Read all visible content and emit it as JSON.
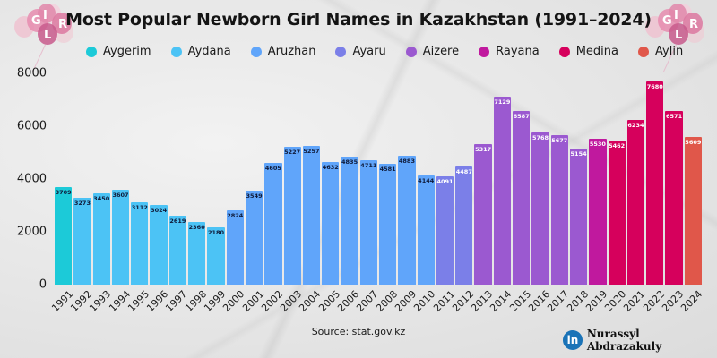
{
  "title": "Most Popular Newborn Girl Names in Kazakhstan (1991–2024)",
  "legend": [
    {
      "name": "Aygerim",
      "color": "#1ccad8"
    },
    {
      "name": "Aydana",
      "color": "#4cc3f5"
    },
    {
      "name": "Aruzhan",
      "color": "#60a5fa"
    },
    {
      "name": "Ayaru",
      "color": "#7b7fe8"
    },
    {
      "name": "Aizere",
      "color": "#9b59d0"
    },
    {
      "name": "Rayana",
      "color": "#c0199e"
    },
    {
      "name": "Medina",
      "color": "#d6005c"
    },
    {
      "name": "Aylin",
      "color": "#e0574a"
    }
  ],
  "source": "Source: stat.gov.kz",
  "credit": {
    "icon": "linkedin-icon",
    "icon_text": "in",
    "name": "Nurassyl Abdrazakuly"
  },
  "decor": {
    "balloon_letters": [
      "G",
      "I",
      "R",
      "L"
    ]
  },
  "chart_data": {
    "type": "bar",
    "title": "Most Popular Newborn Girl Names in Kazakhstan (1991–2024)",
    "xlabel": "",
    "ylabel": "",
    "ylim": [
      0,
      8000
    ],
    "yticks": [
      0,
      2000,
      4000,
      6000,
      8000
    ],
    "grid": false,
    "legend_position": "top",
    "categories": [
      "1991",
      "1992",
      "1993",
      "1994",
      "1995",
      "1996",
      "1997",
      "1998",
      "1999",
      "2000",
      "2001",
      "2002",
      "2003",
      "2004",
      "2005",
      "2006",
      "2007",
      "2008",
      "2009",
      "2010",
      "2011",
      "2012",
      "2013",
      "2014",
      "2015",
      "2016",
      "2017",
      "2018",
      "2019",
      "2020",
      "2021",
      "2022",
      "2023",
      "2024"
    ],
    "values": [
      3709,
      3273,
      3450,
      3607,
      3112,
      3024,
      2619,
      2360,
      2180,
      2824,
      3549,
      4605,
      5227,
      5257,
      4632,
      4835,
      4711,
      4581,
      4883,
      4144,
      4091,
      4487,
      5317,
      7129,
      6587,
      5768,
      5677,
      5154,
      5530,
      5462,
      6234,
      7680,
      6571,
      5609
    ],
    "names": [
      "Aygerim",
      "Aydana",
      "Aydana",
      "Aydana",
      "Aydana",
      "Aydana",
      "Aydana",
      "Aydana",
      "Aydana",
      "Aruzhan",
      "Aruzhan",
      "Aruzhan",
      "Aruzhan",
      "Aruzhan",
      "Aruzhan",
      "Aruzhan",
      "Aruzhan",
      "Aruzhan",
      "Aruzhan",
      "Aruzhan",
      "Ayaru",
      "Ayaru",
      "Aizere",
      "Aizere",
      "Aizere",
      "Aizere",
      "Aizere",
      "Aizere",
      "Rayana",
      "Medina",
      "Medina",
      "Medina",
      "Medina",
      "Aylin"
    ],
    "source": "stat.gov.kz"
  }
}
